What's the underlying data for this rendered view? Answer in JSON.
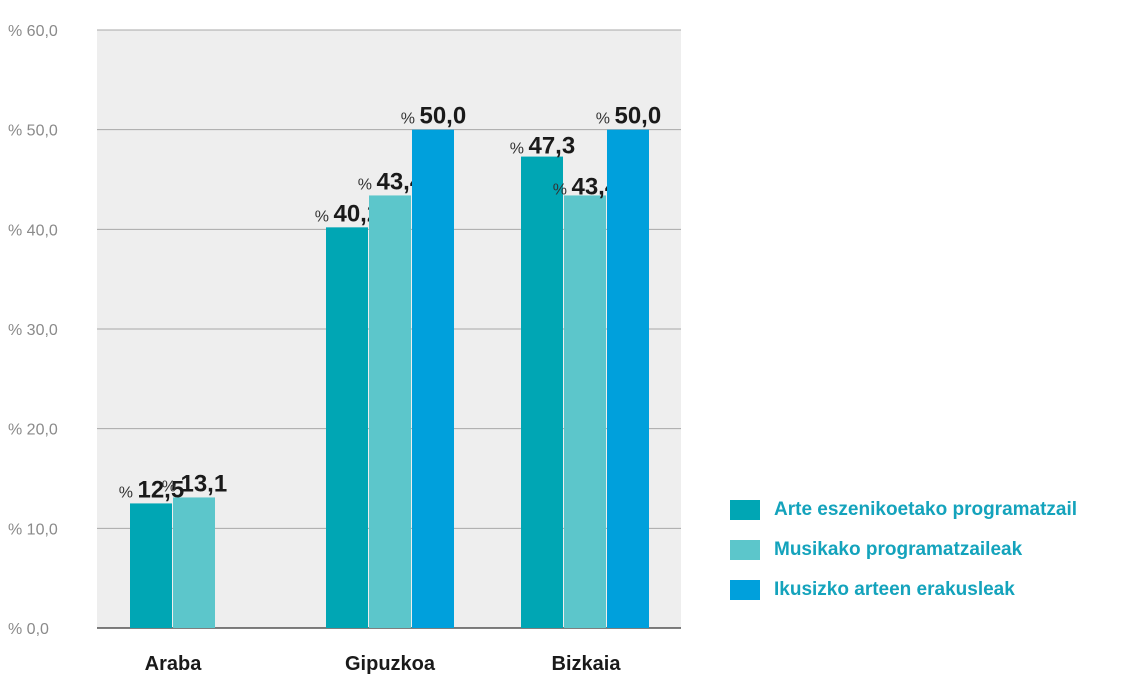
{
  "chart_data": {
    "type": "bar",
    "categories": [
      "Araba",
      "Gipuzkoa",
      "Bizkaia"
    ],
    "ylim": [
      0,
      60
    ],
    "yticks": [
      "% 0,0",
      "% 10,0",
      "% 20,0",
      "% 30,0",
      "% 40,0",
      "% 50,0",
      "% 60,0"
    ],
    "grid": true,
    "legend_position": "bottom-right",
    "value_prefix": "%",
    "series": [
      {
        "name": "Arte eszenikoetako programatzail",
        "color": "#00a6b4",
        "values": [
          12.5,
          40.2,
          47.3
        ],
        "labels": [
          "12,5",
          "40,2",
          "47,3"
        ]
      },
      {
        "name": "Musikako programatzaileak",
        "color": "#5cc6cb",
        "values": [
          13.1,
          43.4,
          43.4
        ],
        "labels": [
          "13,1",
          "43,4",
          "43,4"
        ]
      },
      {
        "name": "Ikusizko arteen erakusleak",
        "color": "#00a0dc",
        "values": [
          null,
          50.0,
          50.0
        ],
        "labels": [
          "",
          "50,0",
          "50,0"
        ]
      }
    ]
  }
}
